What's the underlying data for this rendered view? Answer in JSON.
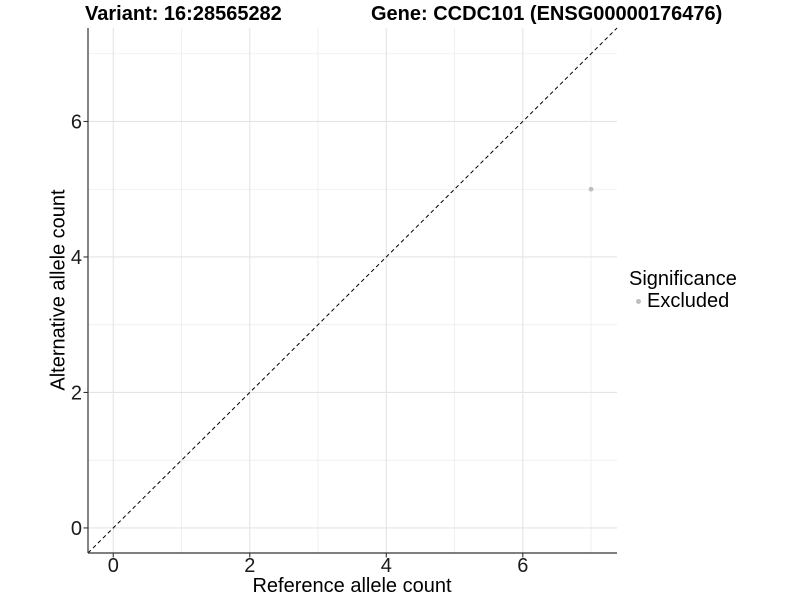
{
  "header": {
    "variant_title": "Variant: 16:28565282",
    "gene_title": "Gene: CCDC101 (ENSG00000176476)"
  },
  "chart_data": {
    "type": "scatter",
    "title": "Variant: 16:28565282  Gene: CCDC101 (ENSG00000176476)",
    "xlabel": "Reference allele count",
    "ylabel": "Alternative allele count",
    "xlim": [
      -0.37,
      7.38
    ],
    "ylim": [
      -0.37,
      7.38
    ],
    "x_major_ticks": [
      0,
      2,
      4,
      6
    ],
    "x_minor_gridlines": [
      1,
      3,
      5,
      7
    ],
    "y_major_ticks": [
      0,
      2,
      4,
      6
    ],
    "y_minor_gridlines": [
      1,
      3,
      5,
      7
    ],
    "grid": true,
    "points": [
      {
        "x": 7,
        "y": 5,
        "significance": "Excluded"
      }
    ],
    "reference_line": {
      "slope": 1,
      "intercept": 0,
      "style": "dashed",
      "color": "#000000"
    },
    "legend": {
      "title": "Significance",
      "position": "right",
      "entries": [
        {
          "label": "Excluded",
          "color": "#BEBEBE"
        }
      ]
    },
    "colors": {
      "point": "#BEBEBE",
      "grid_major": "#E4E4E4",
      "grid_minor": "#EDEDED",
      "axis_line": "#333333",
      "tick_label": "#1a1a1a",
      "text": "#000000",
      "background": "#FFFFFF"
    }
  }
}
